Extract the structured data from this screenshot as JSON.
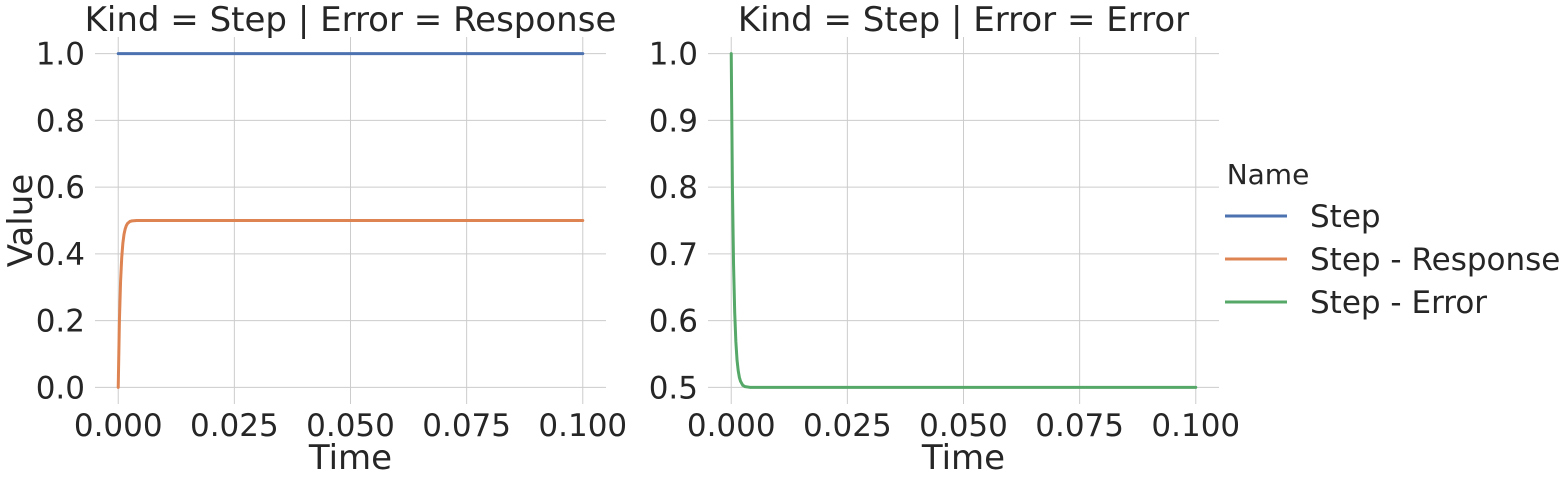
{
  "legend": {
    "title": "Name",
    "placement": "center-right",
    "entries": [
      {
        "label": "Step",
        "color": "#4c72b0"
      },
      {
        "label": "Step - Response",
        "color": "#dd8452"
      },
      {
        "label": "Step - Error",
        "color": "#55a868"
      }
    ]
  },
  "chart_data": [
    {
      "type": "line",
      "title": "Kind = Step | Error = Response",
      "xlabel": "Time",
      "ylabel": "Value",
      "xlim": [
        -0.005,
        0.105
      ],
      "ylim": [
        -0.05,
        1.05
      ],
      "x_ticks": [
        "0.000",
        "0.025",
        "0.050",
        "0.075",
        "0.100"
      ],
      "y_ticks": [
        "0.0",
        "0.2",
        "0.4",
        "0.6",
        "0.8",
        "1.0"
      ],
      "grid": true,
      "series": [
        {
          "name": "Step",
          "color": "#4c72b0",
          "x": [
            0.0,
            0.1
          ],
          "y": [
            1.0,
            1.0
          ]
        },
        {
          "name": "Step - Response",
          "color": "#dd8452",
          "x": [
            0.0,
            0.00025,
            0.0005,
            0.00075,
            0.001,
            0.00125,
            0.0015,
            0.00175,
            0.002,
            0.0025,
            0.003,
            0.004,
            0.1
          ],
          "y": [
            0.0,
            0.197,
            0.316,
            0.388,
            0.432,
            0.459,
            0.475,
            0.485,
            0.491,
            0.497,
            0.499,
            0.5,
            0.5
          ]
        }
      ]
    },
    {
      "type": "line",
      "title": "Kind = Step | Error = Error",
      "xlabel": "Time",
      "ylabel": "",
      "xlim": [
        -0.005,
        0.105
      ],
      "ylim": [
        0.475,
        1.025
      ],
      "x_ticks": [
        "0.000",
        "0.025",
        "0.050",
        "0.075",
        "0.100"
      ],
      "y_ticks": [
        "0.5",
        "0.6",
        "0.7",
        "0.8",
        "0.9",
        "1.0"
      ],
      "grid": true,
      "series": [
        {
          "name": "Step - Error",
          "color": "#55a868",
          "x": [
            0.0,
            0.00025,
            0.0005,
            0.00075,
            0.001,
            0.00125,
            0.0015,
            0.00175,
            0.002,
            0.0025,
            0.003,
            0.004,
            0.1
          ],
          "y": [
            1.0,
            0.803,
            0.684,
            0.612,
            0.568,
            0.541,
            0.525,
            0.515,
            0.509,
            0.503,
            0.501,
            0.5,
            0.5
          ]
        }
      ]
    }
  ]
}
